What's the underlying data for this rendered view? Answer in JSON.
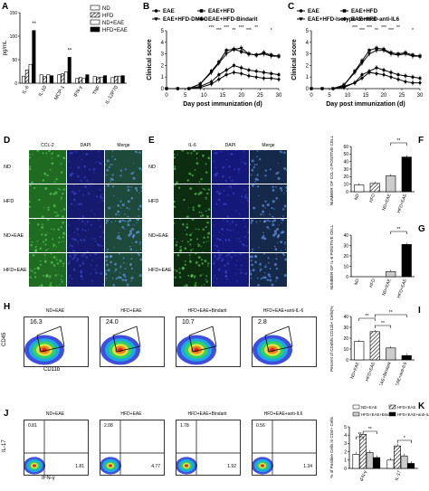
{
  "panel_labels": {
    "A": "A",
    "B": "B",
    "C": "C",
    "D": "D",
    "E": "E",
    "F": "F",
    "G": "G",
    "H": "H",
    "I": "I",
    "J": "J",
    "K": "K"
  },
  "panelA": {
    "ylabel": "pg/mL",
    "categories": [
      "IL-6",
      "IL-10",
      "MCP-1",
      "IFN-γ",
      "TNF",
      "IL-12P70"
    ],
    "series": [
      {
        "name": "ND",
        "values": [
          15,
          18,
          18,
          10,
          14,
          12
        ],
        "fill": "#ffffff"
      },
      {
        "name": "HFD",
        "values": [
          28,
          14,
          20,
          12,
          12,
          15
        ],
        "fill": "hatch"
      },
      {
        "name": "ND+EAE",
        "values": [
          40,
          18,
          24,
          10,
          13,
          15
        ],
        "fill": "#ffffff"
      },
      {
        "name": "HFD+EAE",
        "values": [
          112,
          16,
          55,
          18,
          16,
          16
        ],
        "fill": "#000000"
      }
    ],
    "yticks": [
      "0",
      "50",
      "100",
      "150"
    ],
    "ylim": [
      0,
      150
    ],
    "sig": [
      "**",
      "**"
    ]
  },
  "panelB": {
    "ylabel": "Clinical score",
    "xlabel": "Day post immunization (d)",
    "xticks": [
      "0",
      "5",
      "10",
      "15",
      "20",
      "25",
      "30"
    ],
    "yticks": [
      "0",
      "1",
      "2",
      "3",
      "4",
      "5"
    ],
    "legend": [
      "EAE",
      "EAE+HFD",
      "EAE+HFD-DMSO",
      "EAE+HFD-Bindarit"
    ],
    "sig": [
      "***",
      "***",
      "***",
      "**",
      "***",
      "***",
      "**",
      "*"
    ]
  },
  "panelC": {
    "ylabel": "Clinical score",
    "xlabel": "Day post immunization (d)",
    "xticks": [
      "0",
      "5",
      "10",
      "15",
      "20",
      "25",
      "30"
    ],
    "yticks": [
      "0",
      "1",
      "2",
      "3",
      "4",
      "5"
    ],
    "legend": [
      "EAE",
      "EAE+HFD",
      "EAE+HFD-Isotype control",
      "EAE+HFD-anti-IL6"
    ],
    "sig": [
      "***",
      "***",
      "***",
      "**",
      "***",
      "***",
      "**",
      "*"
    ]
  },
  "chart_data": [
    {
      "type": "line",
      "ylabel": "Clinical score",
      "xlabel": "Day post immunization (d)",
      "x": [
        0,
        3,
        6,
        9,
        12,
        14,
        16,
        18,
        20,
        22,
        24,
        26,
        28,
        30
      ],
      "series": [
        {
          "name": "EAE",
          "values": [
            0,
            0,
            0,
            0.2,
            0.6,
            1.2,
            1.6,
            2.0,
            1.8,
            1.6,
            1.5,
            1.4,
            1.3,
            1.2
          ]
        },
        {
          "name": "EAE+HFD",
          "values": [
            0,
            0,
            0,
            0.4,
            1.5,
            2.3,
            3.3,
            3.4,
            3.2,
            3.0,
            2.9,
            3.1,
            2.9,
            2.8
          ]
        },
        {
          "name": "EAE+HFD-DMSO",
          "values": [
            0,
            0,
            0,
            0.4,
            1.4,
            2.2,
            3.0,
            3.4,
            3.5,
            3.0,
            2.9,
            3.0,
            2.8,
            2.8
          ]
        },
        {
          "name": "EAE+HFD-Bindarit",
          "values": [
            0,
            0,
            0,
            0.1,
            0.4,
            0.8,
            1.2,
            1.4,
            1.3,
            1.1,
            1.0,
            0.9,
            0.9,
            0.8
          ]
        }
      ],
      "ylim": [
        0,
        5
      ]
    },
    {
      "type": "line",
      "ylabel": "Clinical score",
      "xlabel": "Day post immunization (d)",
      "x": [
        0,
        3,
        6,
        9,
        12,
        14,
        16,
        18,
        20,
        22,
        24,
        26,
        28,
        30
      ],
      "series": [
        {
          "name": "EAE",
          "values": [
            0,
            0,
            0,
            0.2,
            0.5,
            1.2,
            1.5,
            1.8,
            1.6,
            1.4,
            1.2,
            1.1,
            1.0,
            0.9
          ]
        },
        {
          "name": "EAE+HFD",
          "values": [
            0,
            0,
            0,
            0.3,
            1.5,
            2.4,
            3.3,
            3.5,
            3.4,
            3.1,
            3.0,
            3.1,
            2.9,
            2.8
          ]
        },
        {
          "name": "EAE+HFD-Isotype control",
          "values": [
            0,
            0,
            0,
            0.3,
            1.4,
            2.2,
            3.0,
            3.3,
            3.3,
            3.0,
            2.9,
            3.0,
            2.8,
            2.8
          ]
        },
        {
          "name": "EAE+HFD-anti-IL6",
          "values": [
            0,
            0,
            0,
            0.1,
            0.5,
            0.9,
            1.4,
            1.3,
            1.2,
            1.0,
            0.8,
            0.6,
            0.5,
            0.5
          ]
        }
      ],
      "ylim": [
        0,
        5
      ]
    },
    {
      "type": "bar",
      "ylabel": "NUMBER OF CCL-2 POSITIVE CELLS",
      "categories": [
        "ND",
        "HFD",
        "ND+EAE",
        "HFD+EAE"
      ],
      "values": [
        9,
        11,
        21,
        46
      ],
      "yticks": [
        "0",
        "10",
        "20",
        "30",
        "40",
        "50",
        "60"
      ],
      "ylim": [
        0,
        60
      ]
    },
    {
      "type": "bar",
      "ylabel": "NUMBER OF IL-6 POSITIVE CELLS",
      "categories": [
        "ND",
        "HFD",
        "ND+EAE",
        "HFD+EAE"
      ],
      "values": [
        0,
        0,
        5,
        31
      ],
      "yticks": [
        "0",
        "10",
        "20",
        "30",
        "40"
      ],
      "ylim": [
        0,
        40
      ]
    },
    {
      "type": "bar",
      "ylabel": "Percent of CD45hi CD11b+ Cells(%)",
      "categories": [
        "ND+EAE",
        "HFD+EAE",
        "HFD+EAE+Bindarit",
        "HFD+EAE+anti-IL6"
      ],
      "values": [
        17,
        26,
        11,
        4
      ],
      "yticks": [
        "0",
        "10",
        "20",
        "30",
        "40"
      ],
      "ylim": [
        0,
        40
      ]
    },
    {
      "type": "bar",
      "ylabel": "% of Positive Cells in CD4+ Cells",
      "categories": [
        "IFN-γ",
        "IL-17"
      ],
      "series": [
        {
          "name": "ND+EAE",
          "values": [
            1.7,
            1.0
          ]
        },
        {
          "name": "HFD+EAE",
          "values": [
            4.1,
            2.7
          ]
        },
        {
          "name": "HFD+EAE+Bindarit",
          "values": [
            1.9,
            1.5
          ]
        },
        {
          "name": "HFD+EAE+anti-IL6",
          "values": [
            1.3,
            0.6
          ]
        }
      ],
      "yticks": [
        "0",
        "1",
        "2",
        "3",
        "4",
        "5"
      ],
      "ylim": [
        0,
        5
      ]
    }
  ],
  "panelD": {
    "columns": [
      "CCL-2",
      "DAPI",
      "Merge"
    ],
    "rows": [
      "ND",
      "HFD",
      "ND+EAE",
      "HFD+EAE"
    ]
  },
  "panelE": {
    "columns": [
      "IL-6",
      "DAPI",
      "Merge"
    ],
    "rows": [
      "ND",
      "HFD",
      "ND+EAE",
      "HFD+EAE"
    ]
  },
  "panelF": {
    "ylabel": "NUMBER OF CCL-2 POSITIVE CELLS",
    "sig": "**"
  },
  "panelG": {
    "ylabel": "NUMBER OF IL-6 POSITIVE CELLS",
    "sig": "**"
  },
  "panelH": {
    "ylabel": "CD45",
    "xlabel": "CD11b",
    "plots": [
      {
        "title": "ND+EAE",
        "gate": "16.3"
      },
      {
        "title": "HFD+EAE",
        "gate": "24.0"
      },
      {
        "title": "HFD+EAE+Bindarit",
        "gate": "10.7"
      },
      {
        "title": "HFD+EAE+anti-IL-6",
        "gate": "2.8"
      }
    ]
  },
  "panelI": {
    "ylabel": "Percent of CD45hi CD11b+ Cells(%)",
    "sig": [
      "**",
      "**",
      "**"
    ]
  },
  "panelJ": {
    "ylabel": "IL-17",
    "xlabel": "IFN-γ",
    "plots": [
      {
        "title": "ND+EAE",
        "ul": "0.81",
        "lr": "1.81"
      },
      {
        "title": "HFD+EAE",
        "ul": "2.08",
        "lr": "4.77"
      },
      {
        "title": "HFD+EAE+Bindarit",
        "ul": "1.78",
        "lr": "1.92"
      },
      {
        "title": "HFD+EAE+anti-IL6",
        "ul": "0.56",
        "lr": "1.34"
      }
    ]
  },
  "panelK": {
    "ylabel": "% of Positive Cells in CD4+ Cells",
    "legend": [
      "ND+EAE",
      "HFD+EAE",
      "HFD+EAE+Bindarit",
      "HFD+EAE+anti-IL6"
    ],
    "sig": [
      "**",
      "**",
      "*"
    ]
  },
  "colors": {
    "accent": "#000000",
    "micro_green": "#1f6b22",
    "micro_blue": "#1a1e7a"
  }
}
